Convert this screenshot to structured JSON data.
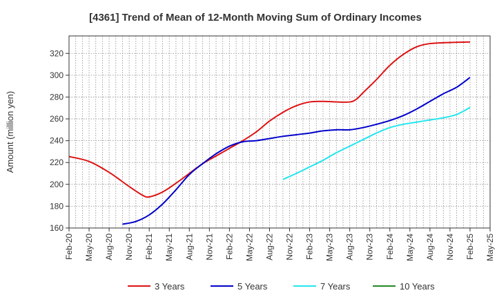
{
  "chart_data": {
    "type": "line",
    "title": "[4361]  Trend of Mean of 12-Month Moving Sum of Ordinary Incomes",
    "ylabel": "Amount (million yen)",
    "xlabel": "",
    "ylim": [
      160,
      336
    ],
    "yticks": [
      160,
      180,
      200,
      220,
      240,
      260,
      280,
      300,
      320
    ],
    "x_months": 63,
    "xticks": [
      {
        "label": "Feb-20",
        "m": 0
      },
      {
        "label": "May-20",
        "m": 3
      },
      {
        "label": "Aug-20",
        "m": 6
      },
      {
        "label": "Nov-20",
        "m": 9
      },
      {
        "label": "Feb-21",
        "m": 12
      },
      {
        "label": "May-21",
        "m": 15
      },
      {
        "label": "Aug-21",
        "m": 18
      },
      {
        "label": "Nov-21",
        "m": 21
      },
      {
        "label": "Feb-22",
        "m": 24
      },
      {
        "label": "May-22",
        "m": 27
      },
      {
        "label": "Aug-22",
        "m": 30
      },
      {
        "label": "Nov-22",
        "m": 33
      },
      {
        "label": "Feb-23",
        "m": 36
      },
      {
        "label": "May-23",
        "m": 39
      },
      {
        "label": "Aug-23",
        "m": 42
      },
      {
        "label": "Nov-23",
        "m": 45
      },
      {
        "label": "Feb-24",
        "m": 48
      },
      {
        "label": "May-24",
        "m": 51
      },
      {
        "label": "Aug-24",
        "m": 54
      },
      {
        "label": "Nov-24",
        "m": 57
      },
      {
        "label": "Feb-25",
        "m": 60
      },
      {
        "label": "May-25",
        "m": 63
      }
    ],
    "grid": true,
    "legend_position": "bottom",
    "series": [
      {
        "name": "3 Years",
        "color": "#dd1111",
        "points": [
          [
            0,
            225.5
          ],
          [
            3,
            221
          ],
          [
            6,
            211
          ],
          [
            9,
            198
          ],
          [
            11,
            190
          ],
          [
            12,
            188.5
          ],
          [
            14,
            193
          ],
          [
            16,
            201
          ],
          [
            18,
            210
          ],
          [
            20,
            219
          ],
          [
            22,
            226
          ],
          [
            24,
            233
          ],
          [
            26,
            240
          ],
          [
            28,
            248
          ],
          [
            30,
            258
          ],
          [
            32,
            266
          ],
          [
            34,
            272
          ],
          [
            36,
            275.5
          ],
          [
            38,
            276
          ],
          [
            40,
            275.5
          ],
          [
            42,
            275.5
          ],
          [
            43,
            278
          ],
          [
            44,
            284
          ],
          [
            46,
            296
          ],
          [
            48,
            309
          ],
          [
            50,
            319
          ],
          [
            52,
            326
          ],
          [
            54,
            329
          ],
          [
            57,
            330
          ],
          [
            60,
            330.5
          ]
        ]
      },
      {
        "name": "5 Years",
        "color": "#0000cc",
        "points": [
          [
            8,
            163.5
          ],
          [
            10,
            166
          ],
          [
            12,
            172
          ],
          [
            14,
            182
          ],
          [
            16,
            195
          ],
          [
            18,
            209
          ],
          [
            20,
            219
          ],
          [
            22,
            228
          ],
          [
            24,
            235
          ],
          [
            26,
            239
          ],
          [
            28,
            240
          ],
          [
            30,
            242
          ],
          [
            32,
            244
          ],
          [
            34,
            245.5
          ],
          [
            36,
            247
          ],
          [
            38,
            249
          ],
          [
            40,
            250
          ],
          [
            42,
            250
          ],
          [
            44,
            252
          ],
          [
            46,
            255
          ],
          [
            48,
            258.5
          ],
          [
            50,
            263
          ],
          [
            52,
            269
          ],
          [
            54,
            276
          ],
          [
            56,
            283
          ],
          [
            58,
            289
          ],
          [
            60,
            298
          ]
        ]
      },
      {
        "name": "7 Years",
        "color": "#22e5ee",
        "points": [
          [
            32,
            204.5
          ],
          [
            34,
            210
          ],
          [
            36,
            216
          ],
          [
            38,
            222
          ],
          [
            40,
            229
          ],
          [
            42,
            235
          ],
          [
            44,
            241
          ],
          [
            46,
            247
          ],
          [
            48,
            252
          ],
          [
            50,
            255
          ],
          [
            52,
            257
          ],
          [
            54,
            259
          ],
          [
            56,
            261
          ],
          [
            58,
            264
          ],
          [
            60,
            270.5
          ]
        ]
      },
      {
        "name": "10 Years",
        "color": "#228822",
        "points": []
      }
    ]
  }
}
